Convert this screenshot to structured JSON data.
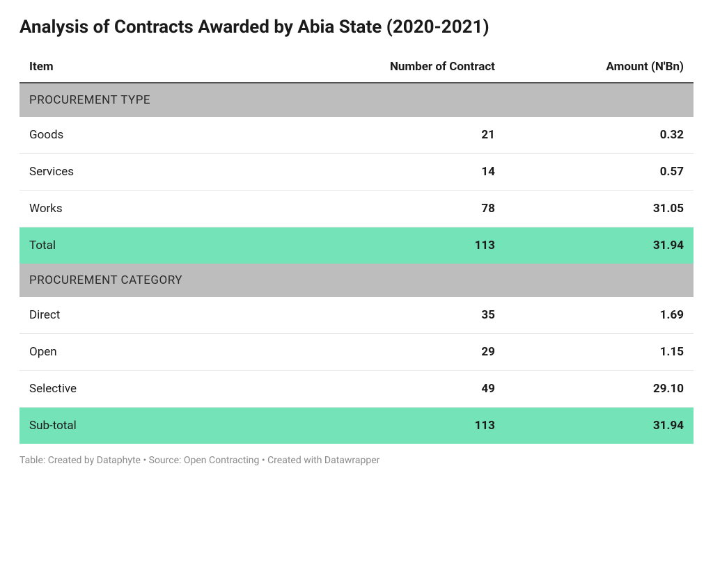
{
  "title": "Analysis of Contracts Awarded by Abia State (2020-2021)",
  "colors": {
    "background": "#ffffff",
    "text": "#1a1a1a",
    "header_rule": "#555555",
    "row_border": "#e8e8e8",
    "section_bg": "#bdbdbd",
    "total_bg": "#74e3b8",
    "footer_text": "#8a8a8a"
  },
  "typography": {
    "title_fontsize": 26,
    "title_weight": 700,
    "header_fontsize": 17,
    "header_weight": 700,
    "cell_fontsize": 17,
    "footer_fontsize": 14
  },
  "table": {
    "columns": [
      {
        "key": "item",
        "label": "Item",
        "align": "left",
        "width_pct": 44
      },
      {
        "key": "count",
        "label": "Number of Contract",
        "align": "right",
        "width_pct": 28
      },
      {
        "key": "amount",
        "label": "Amount (N'Bn)",
        "align": "right",
        "width_pct": 28
      }
    ],
    "rows": [
      {
        "type": "section",
        "item": "PROCUREMENT TYPE"
      },
      {
        "type": "data",
        "item": "Goods",
        "count": "21",
        "amount": "0.32"
      },
      {
        "type": "data",
        "item": "Services",
        "count": "14",
        "amount": "0.57"
      },
      {
        "type": "data",
        "item": "Works",
        "count": "78",
        "amount": "31.05"
      },
      {
        "type": "total",
        "item": "Total",
        "count": "113",
        "amount": "31.94"
      },
      {
        "type": "section",
        "item": "PROCUREMENT CATEGORY"
      },
      {
        "type": "data",
        "item": "Direct",
        "count": "35",
        "amount": "1.69"
      },
      {
        "type": "data",
        "item": "Open",
        "count": "29",
        "amount": "1.15"
      },
      {
        "type": "data",
        "item": "Selective",
        "count": "49",
        "amount": "29.10"
      },
      {
        "type": "total",
        "item": "Sub-total",
        "count": "113",
        "amount": "31.94"
      }
    ]
  },
  "footer": "Table: Created by Dataphyte • Source: Open Contracting • Created with Datawrapper"
}
